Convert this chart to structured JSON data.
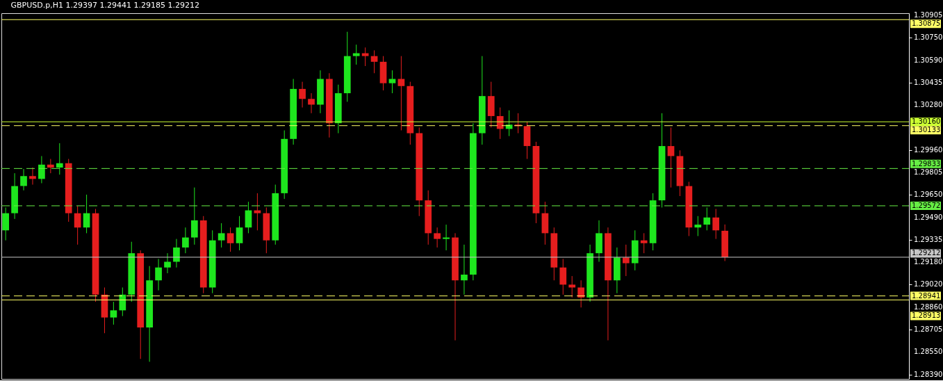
{
  "chart_data": {
    "type": "candlestick",
    "title": "GBPUSD.p,H1  1.29397 1.29441 1.29185 1.29212",
    "categories": [
      null,
      null,
      null,
      null,
      null,
      null,
      null,
      null,
      null,
      null,
      null,
      null,
      null,
      null,
      null,
      null,
      null,
      null,
      null,
      null,
      null,
      null,
      null,
      null,
      null,
      null,
      null,
      null,
      null,
      null,
      null,
      null,
      null,
      null,
      null,
      null,
      null,
      null,
      null,
      null,
      null,
      null,
      null,
      null,
      null,
      null,
      null,
      null,
      null,
      null,
      null,
      null,
      null,
      null,
      null,
      null,
      null,
      null,
      null,
      null,
      null,
      null,
      null,
      null,
      null,
      null,
      null,
      null,
      null,
      null,
      null,
      null,
      null,
      null,
      null,
      null,
      null,
      null,
      null,
      null,
      null,
      null,
      null,
      null,
      null,
      null,
      null,
      null,
      null,
      null,
      null,
      null,
      null,
      null,
      null,
      null,
      null,
      null,
      null,
      null,
      null
    ],
    "ohlc": [
      [
        1.294,
        1.2956,
        1.2933,
        1.2952
      ],
      [
        1.2952,
        1.298,
        1.2948,
        1.2971
      ],
      [
        1.2971,
        1.2983,
        1.2968,
        1.2978
      ],
      [
        1.2978,
        1.2984,
        1.2972,
        1.2976
      ],
      [
        1.2976,
        1.2992,
        1.2973,
        1.2986
      ],
      [
        1.2986,
        1.299,
        1.298,
        1.2984
      ],
      [
        1.2984,
        1.3001,
        1.2979,
        1.2987
      ],
      [
        1.2987,
        1.299,
        1.2946,
        1.2952
      ],
      [
        1.2952,
        1.2957,
        1.293,
        1.2942
      ],
      [
        1.2942,
        1.2965,
        1.2938,
        1.2952
      ],
      [
        1.2952,
        1.2955,
        1.289,
        1.2895
      ],
      [
        1.2895,
        1.29,
        1.2868,
        1.2879
      ],
      [
        1.2879,
        1.289,
        1.2874,
        1.2884
      ],
      [
        1.2884,
        1.29,
        1.288,
        1.2895
      ],
      [
        1.2895,
        1.2932,
        1.289,
        1.2924
      ],
      [
        1.2924,
        1.2926,
        1.285,
        1.2872
      ],
      [
        1.2872,
        1.2915,
        1.2848,
        1.2905
      ],
      [
        1.2905,
        1.292,
        1.2898,
        1.2914
      ],
      [
        1.2914,
        1.2924,
        1.291,
        1.2918
      ],
      [
        1.2918,
        1.2934,
        1.2914,
        1.2928
      ],
      [
        1.2928,
        1.2942,
        1.2924,
        1.2935
      ],
      [
        1.2935,
        1.297,
        1.293,
        1.2947
      ],
      [
        1.2947,
        1.295,
        1.2896,
        1.29
      ],
      [
        1.29,
        1.294,
        1.2896,
        1.2933
      ],
      [
        1.2933,
        1.2945,
        1.2928,
        1.2938
      ],
      [
        1.2938,
        1.2942,
        1.2925,
        1.2931
      ],
      [
        1.2931,
        1.295,
        1.2926,
        1.2942
      ],
      [
        1.2942,
        1.296,
        1.2938,
        1.2954
      ],
      [
        1.2954,
        1.2966,
        1.294,
        1.2952
      ],
      [
        1.2952,
        1.2956,
        1.2924,
        1.2933
      ],
      [
        1.2933,
        1.2972,
        1.293,
        1.2966
      ],
      [
        1.2966,
        1.301,
        1.2962,
        1.3004
      ],
      [
        1.3004,
        1.3046,
        1.3,
        1.3039
      ],
      [
        1.3039,
        1.3044,
        1.3026,
        1.3032
      ],
      [
        1.3032,
        1.3036,
        1.3022,
        1.3028
      ],
      [
        1.3028,
        1.3052,
        1.3022,
        1.3046
      ],
      [
        1.3046,
        1.305,
        1.3005,
        1.3015
      ],
      [
        1.3015,
        1.3042,
        1.3008,
        1.3036
      ],
      [
        1.3036,
        1.3079,
        1.303,
        1.3062
      ],
      [
        1.3062,
        1.307,
        1.3056,
        1.3064
      ],
      [
        1.3064,
        1.3068,
        1.3055,
        1.3062
      ],
      [
        1.3062,
        1.3066,
        1.305,
        1.3058
      ],
      [
        1.3058,
        1.3062,
        1.3038,
        1.3043
      ],
      [
        1.3043,
        1.3052,
        1.3036,
        1.3046
      ],
      [
        1.3046,
        1.3062,
        1.301,
        1.3041
      ],
      [
        1.3041,
        1.3044,
        1.3,
        1.3008
      ],
      [
        1.3008,
        1.3012,
        1.295,
        1.2961
      ],
      [
        1.2961,
        1.2968,
        1.293,
        1.2938
      ],
      [
        1.2938,
        1.2942,
        1.2928,
        1.2934
      ],
      [
        1.2934,
        1.2944,
        1.2926,
        1.2935
      ],
      [
        1.2935,
        1.2938,
        1.2863,
        1.2905
      ],
      [
        1.2905,
        1.293,
        1.2895,
        1.2909
      ],
      [
        1.2909,
        1.3015,
        1.2905,
        1.3008
      ],
      [
        1.3008,
        1.3062,
        1.3,
        1.3034
      ],
      [
        1.3034,
        1.3044,
        1.3012,
        1.302
      ],
      [
        1.302,
        1.3026,
        1.3004,
        1.3011
      ],
      [
        1.3011,
        1.3024,
        1.3006,
        1.3014
      ],
      [
        1.3014,
        1.3022,
        1.3008,
        1.3013
      ],
      [
        1.3013,
        1.3016,
        1.299,
        1.2999
      ],
      [
        1.2999,
        1.3002,
        1.2945,
        1.2952
      ],
      [
        1.2952,
        1.296,
        1.293,
        1.2938
      ],
      [
        1.2938,
        1.2942,
        1.2905,
        1.2914
      ],
      [
        1.2914,
        1.292,
        1.2895,
        1.2902
      ],
      [
        1.2902,
        1.2908,
        1.2893,
        1.29
      ],
      [
        1.29,
        1.2905,
        1.2886,
        1.2893
      ],
      [
        1.2893,
        1.293,
        1.289,
        1.2924
      ],
      [
        1.2924,
        1.2947,
        1.2918,
        1.2938
      ],
      [
        1.2938,
        1.2942,
        1.2863,
        1.2905
      ],
      [
        1.2905,
        1.2928,
        1.2896,
        1.2921
      ],
      [
        1.2921,
        1.293,
        1.2908,
        1.2917
      ],
      [
        1.2917,
        1.294,
        1.2912,
        1.2933
      ],
      [
        1.2933,
        1.2938,
        1.2924,
        1.2931
      ],
      [
        1.2931,
        1.2966,
        1.2926,
        1.2961
      ],
      [
        1.2961,
        1.3022,
        1.2956,
        1.2999
      ],
      [
        1.2999,
        1.3012,
        1.297,
        1.2992
      ],
      [
        1.2992,
        1.2996,
        1.2964,
        1.2971
      ],
      [
        1.2971,
        1.2974,
        1.2936,
        1.2942
      ],
      [
        1.2942,
        1.295,
        1.2936,
        1.2944
      ],
      [
        1.2944,
        1.2956,
        1.294,
        1.2949
      ],
      [
        1.2949,
        1.2955,
        1.2934,
        1.294
      ],
      [
        1.29397,
        1.29441,
        1.29185,
        1.29212
      ],
      null,
      null,
      null,
      null,
      null,
      null,
      null,
      null,
      null,
      null,
      null,
      null,
      null,
      null,
      null,
      null,
      null,
      null,
      null,
      null
    ],
    "colors": [
      "#1ee61e",
      "#1ee61e",
      "#1ee61e",
      "#e61e1e",
      "#1ee61e",
      "#e61e1e",
      "#1ee61e",
      "#e61e1e",
      "#e61e1e",
      "#1ee61e",
      "#e61e1e",
      "#e61e1e",
      "#1ee61e",
      "#1ee61e",
      "#1ee61e",
      "#e61e1e",
      "#1ee61e",
      "#1ee61e",
      "#1ee61e",
      "#1ee61e",
      "#1ee61e",
      "#1ee61e",
      "#e61e1e",
      "#1ee61e",
      "#1ee61e",
      "#e61e1e",
      "#1ee61e",
      "#1ee61e",
      "#e61e1e",
      "#e61e1e",
      "#1ee61e",
      "#1ee61e",
      "#1ee61e",
      "#e61e1e",
      "#e61e1e",
      "#1ee61e",
      "#e61e1e",
      "#1ee61e",
      "#1ee61e",
      "#1ee61e",
      "#e61e1e",
      "#e61e1e",
      "#e61e1e",
      "#1ee61e",
      "#e61e1e",
      "#e61e1e",
      "#e61e1e",
      "#e61e1e",
      "#e61e1e",
      "#1ee61e",
      "#e61e1e",
      "#1ee61e",
      "#1ee61e",
      "#1ee61e",
      "#e61e1e",
      "#e61e1e",
      "#1ee61e",
      "#e61e1e",
      "#e61e1e",
      "#e61e1e",
      "#e61e1e",
      "#e61e1e",
      "#e61e1e",
      "#e61e1e",
      "#e61e1e",
      "#1ee61e",
      "#1ee61e",
      "#e61e1e",
      "#1ee61e",
      "#e61e1e",
      "#1ee61e",
      "#e61e1e",
      "#1ee61e",
      "#1ee61e",
      "#e61e1e",
      "#e61e1e",
      "#e61e1e",
      "#1ee61e",
      "#1ee61e",
      "#e61e1e",
      "#e61e1e",
      null,
      null,
      null,
      null,
      null,
      null,
      null,
      null,
      null,
      null,
      null,
      null,
      null,
      null,
      null,
      null,
      null,
      null,
      null,
      null
    ],
    "ylim": [
      1.2836,
      1.3092
    ],
    "yticks": [
      1.30905,
      {
        "value": 1.3075,
        "label": "1.30750"
      },
      {
        "value": 1.3059,
        "label": "1.30590"
      },
      1.30435,
      {
        "value": 1.3028,
        "label": "1.30280"
      },
      {
        "value": 1.2996,
        "label": "1.29960"
      },
      1.29805,
      {
        "value": 1.2965,
        "label": "1.29650"
      },
      {
        "value": 1.2949,
        "label": "1.29490"
      },
      1.29335,
      {
        "value": 1.2918,
        "label": "1.29180"
      },
      {
        "value": 1.2902,
        "label": "1.29020"
      },
      {
        "value": 1.2886,
        "label": "1.28860"
      },
      1.28705,
      {
        "value": 1.2855,
        "label": "1.28550"
      },
      {
        "value": 1.2839,
        "label": "1.28390"
      }
    ],
    "ref_lines": [
      {
        "axis": "y",
        "value": 1.30875,
        "label": "1.30875",
        "color": "#ffff66",
        "line_style": "solid"
      },
      {
        "axis": "y",
        "value": 1.3016,
        "label": "1.30160",
        "color": "#ccff33",
        "line_style": "solid"
      },
      {
        "axis": "y",
        "value": 1.30133,
        "label": "1.30133",
        "color": "#ffff66",
        "line_style": "dashed"
      },
      {
        "axis": "y",
        "value": 1.29833,
        "label": "1.29833",
        "color": "#66ee44",
        "line_style": "dashed"
      },
      {
        "axis": "y",
        "value": 1.29572,
        "label": "1.29572",
        "color": "#66ee44",
        "line_style": "dashed"
      },
      {
        "axis": "y",
        "value": 1.29212,
        "label": "1.29212",
        "color": "#c8c8c8",
        "line_style": "solid"
      },
      {
        "axis": "y",
        "value": 1.28941,
        "label": "1.28941",
        "color": "#ffff66",
        "line_style": "dashed"
      },
      {
        "axis": "y",
        "value": 1.28913,
        "label": "1.28913",
        "color": "#ffff66",
        "line_style": "solid"
      }
    ],
    "tick_labels": "y",
    "grid": false
  }
}
